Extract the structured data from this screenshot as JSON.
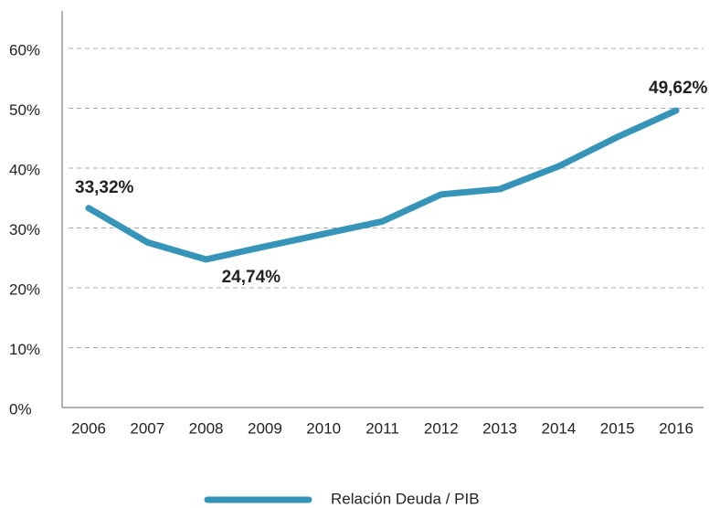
{
  "chart_data": {
    "type": "line",
    "categories": [
      "2006",
      "2007",
      "2008",
      "2009",
      "2010",
      "2011",
      "2012",
      "2013",
      "2014",
      "2015",
      "2016"
    ],
    "series": [
      {
        "name": "Relación Deuda / PIB",
        "color": "#3594b8",
        "values": [
          33.32,
          27.6,
          24.74,
          26.9,
          29.0,
          31.1,
          35.6,
          36.5,
          40.3,
          45.2,
          49.62
        ],
        "value_labels": [
          "33,32%",
          null,
          "24,74%",
          null,
          null,
          null,
          null,
          null,
          null,
          null,
          "49,62%"
        ]
      }
    ],
    "ylim": [
      0,
      60
    ],
    "yticks": [
      {
        "value": 0,
        "label": "0%"
      },
      {
        "value": 10,
        "label": "10%"
      },
      {
        "value": 20,
        "label": "20%"
      },
      {
        "value": 30,
        "label": "30%"
      },
      {
        "value": 40,
        "label": "40%"
      },
      {
        "value": 50,
        "label": "50%"
      },
      {
        "value": 60,
        "label": "60%"
      }
    ],
    "grid": true,
    "legend": "bottom"
  }
}
